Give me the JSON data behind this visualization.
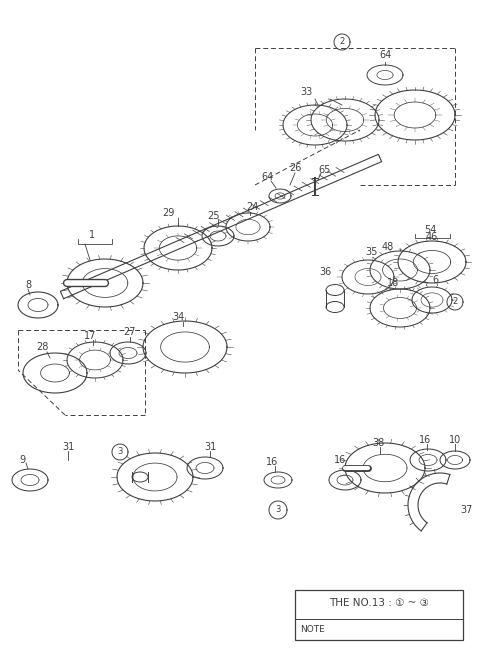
{
  "bg_color": "#ffffff",
  "line_color": "#404040",
  "note_content": "THE NO.13 : ① ~ ③",
  "fig_w": 4.8,
  "fig_h": 6.55,
  "dpi": 100
}
